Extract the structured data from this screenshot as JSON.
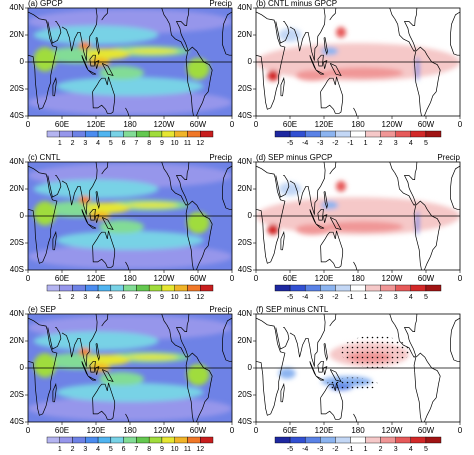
{
  "chart_data": [
    {
      "type": "contour",
      "title": "(a) GPCP",
      "variable": "Precip",
      "xlim": [
        0,
        360
      ],
      "xticks": [
        0,
        {
          "value": 60,
          "label": "60E"
        },
        {
          "value": 120,
          "label": "120E"
        },
        180,
        {
          "value": 240,
          "label": "120W"
        },
        {
          "value": 300,
          "label": "60W"
        },
        {
          "value": 360,
          "label": "0"
        }
      ],
      "ylim": [
        -40,
        40
      ],
      "yticks": [
        {
          "value": 40,
          "label": "40N"
        },
        {
          "value": 20,
          "label": "20N"
        },
        0,
        {
          "value": -20,
          "label": "20S"
        },
        {
          "value": -40,
          "label": "40S"
        }
      ],
      "levels": [
        1,
        2,
        3,
        4,
        5,
        6,
        7,
        8,
        9,
        10,
        11,
        12
      ],
      "colors": [
        "#b4b4f0",
        "#9696eb",
        "#6e82e6",
        "#4b8cf0",
        "#50b4f0",
        "#78d2e6",
        "#82dc96",
        "#64c850",
        "#a0dc3c",
        "#e6e632",
        "#f0b428",
        "#f07828",
        "#c81e1e"
      ]
    },
    {
      "type": "contour",
      "title": "(b) CNTL minus GPCP",
      "xlim": [
        0,
        360
      ],
      "xticks": [
        0,
        {
          "value": 60,
          "label": "60E"
        },
        {
          "value": 120,
          "label": "120E"
        },
        180,
        {
          "value": 240,
          "label": "120W"
        },
        {
          "value": 300,
          "label": "60W"
        },
        {
          "value": 360,
          "label": "0"
        }
      ],
      "ylim": [
        -40,
        40
      ],
      "yticks": [
        {
          "value": 40,
          "label": "40N"
        },
        {
          "value": 20,
          "label": "20N"
        },
        0,
        {
          "value": -20,
          "label": "20S"
        },
        {
          "value": -40,
          "label": "40S"
        }
      ],
      "levels": [
        -5,
        -4,
        -3,
        -2,
        -1,
        1,
        2,
        3,
        4,
        5
      ],
      "colors": [
        "#1e28a0",
        "#3250d2",
        "#5a82e6",
        "#8cb4f0",
        "#c3d7f5",
        "#ffffff",
        "#f5c8c8",
        "#f09696",
        "#e65a5a",
        "#d22828",
        "#a01414"
      ]
    },
    {
      "type": "contour",
      "title": "(c) CNTL",
      "variable": "Precip",
      "xlim": [
        0,
        360
      ],
      "xticks": [
        0,
        {
          "value": 60,
          "label": "60E"
        },
        {
          "value": 120,
          "label": "120E"
        },
        180,
        {
          "value": 240,
          "label": "120W"
        },
        {
          "value": 300,
          "label": "60W"
        },
        {
          "value": 360,
          "label": "0"
        }
      ],
      "ylim": [
        -40,
        40
      ],
      "yticks": [
        {
          "value": 40,
          "label": "40N"
        },
        {
          "value": 20,
          "label": "20N"
        },
        0,
        {
          "value": -20,
          "label": "20S"
        },
        {
          "value": -40,
          "label": "40S"
        }
      ],
      "levels": [
        1,
        2,
        3,
        4,
        5,
        6,
        7,
        8,
        9,
        10,
        11,
        12
      ],
      "colors": [
        "#b4b4f0",
        "#9696eb",
        "#6e82e6",
        "#4b8cf0",
        "#50b4f0",
        "#78d2e6",
        "#82dc96",
        "#64c850",
        "#a0dc3c",
        "#e6e632",
        "#f0b428",
        "#f07828",
        "#c81e1e"
      ]
    },
    {
      "type": "contour",
      "title": "(d) SEP minus GPCP",
      "variable": "Precip",
      "xlim": [
        0,
        360
      ],
      "xticks": [
        0,
        {
          "value": 60,
          "label": "60E"
        },
        {
          "value": 120,
          "label": "120E"
        },
        180,
        {
          "value": 240,
          "label": "120W"
        },
        {
          "value": 300,
          "label": "60W"
        },
        {
          "value": 360,
          "label": "0"
        }
      ],
      "ylim": [
        -40,
        40
      ],
      "yticks": [
        {
          "value": 40,
          "label": "40N"
        },
        {
          "value": 20,
          "label": "20N"
        },
        0,
        {
          "value": -20,
          "label": "20S"
        },
        {
          "value": -40,
          "label": "40S"
        }
      ],
      "levels": [
        -5,
        -4,
        -3,
        -2,
        -1,
        1,
        2,
        3,
        4,
        5
      ],
      "colors": [
        "#1e28a0",
        "#3250d2",
        "#5a82e6",
        "#8cb4f0",
        "#c3d7f5",
        "#ffffff",
        "#f5c8c8",
        "#f09696",
        "#e65a5a",
        "#d22828",
        "#a01414"
      ]
    },
    {
      "type": "contour",
      "title": "(e) SEP",
      "variable": "Precip",
      "xlim": [
        0,
        360
      ],
      "xticks": [
        0,
        {
          "value": 60,
          "label": "60E"
        },
        {
          "value": 120,
          "label": "120E"
        },
        180,
        {
          "value": 240,
          "label": "120W"
        },
        {
          "value": 300,
          "label": "60W"
        },
        {
          "value": 360,
          "label": "0"
        }
      ],
      "ylim": [
        -40,
        40
      ],
      "yticks": [
        {
          "value": 40,
          "label": "40N"
        },
        {
          "value": 20,
          "label": "20N"
        },
        0,
        {
          "value": -20,
          "label": "20S"
        },
        {
          "value": -40,
          "label": "40S"
        }
      ],
      "levels": [
        1,
        2,
        3,
        4,
        5,
        6,
        7,
        8,
        9,
        10,
        11,
        12
      ],
      "colors": [
        "#b4b4f0",
        "#9696eb",
        "#6e82e6",
        "#4b8cf0",
        "#50b4f0",
        "#78d2e6",
        "#82dc96",
        "#64c850",
        "#a0dc3c",
        "#e6e632",
        "#f0b428",
        "#f07828",
        "#c81e1e"
      ]
    },
    {
      "type": "contour",
      "title": "(f) SEP minus CNTL",
      "xlim": [
        0,
        360
      ],
      "xticks": [
        0,
        {
          "value": 60,
          "label": "60E"
        },
        {
          "value": 120,
          "label": "120E"
        },
        180,
        {
          "value": 240,
          "label": "120W"
        },
        {
          "value": 300,
          "label": "60W"
        },
        {
          "value": 360,
          "label": "0"
        }
      ],
      "ylim": [
        -40,
        40
      ],
      "yticks": [
        {
          "value": 40,
          "label": "40N"
        },
        {
          "value": 20,
          "label": "20N"
        },
        0,
        {
          "value": -20,
          "label": "20S"
        },
        {
          "value": -40,
          "label": "40S"
        }
      ],
      "levels": [
        -5,
        -4,
        -3,
        -2,
        -1,
        1,
        2,
        3,
        4,
        5
      ],
      "colors": [
        "#1e28a0",
        "#3250d2",
        "#5a82e6",
        "#8cb4f0",
        "#c3d7f5",
        "#ffffff",
        "#f5c8c8",
        "#f09696",
        "#e65a5a",
        "#d22828",
        "#a01414"
      ]
    }
  ]
}
